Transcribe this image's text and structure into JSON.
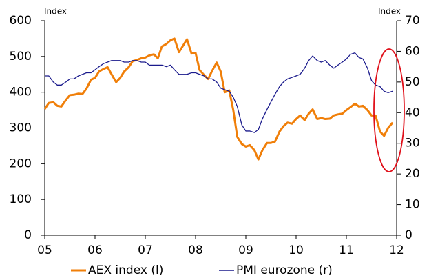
{
  "chart_data": {
    "type": "line",
    "y_label": "Index",
    "y2_label": "Index",
    "x": [
      2005.0,
      2005.08,
      2005.17,
      2005.25,
      2005.33,
      2005.42,
      2005.5,
      2005.58,
      2005.67,
      2005.75,
      2005.83,
      2005.92,
      2006.0,
      2006.08,
      2006.17,
      2006.25,
      2006.33,
      2006.42,
      2006.5,
      2006.58,
      2006.67,
      2006.75,
      2006.83,
      2006.92,
      2007.0,
      2007.08,
      2007.17,
      2007.25,
      2007.33,
      2007.42,
      2007.5,
      2007.58,
      2007.67,
      2007.75,
      2007.83,
      2007.92,
      2008.0,
      2008.08,
      2008.17,
      2008.25,
      2008.33,
      2008.42,
      2008.5,
      2008.58,
      2008.67,
      2008.75,
      2008.83,
      2008.92,
      2009.0,
      2009.08,
      2009.17,
      2009.25,
      2009.33,
      2009.42,
      2009.5,
      2009.58,
      2009.67,
      2009.75,
      2009.83,
      2009.92,
      2010.0,
      2010.08,
      2010.17,
      2010.25,
      2010.33,
      2010.42,
      2010.5,
      2010.58,
      2010.67,
      2010.75,
      2010.83,
      2010.92,
      2011.0,
      2011.08,
      2011.17,
      2011.25,
      2011.33,
      2011.42,
      2011.5,
      2011.58,
      2011.67,
      2011.75,
      2011.83,
      2011.92
    ],
    "series": [
      {
        "name": "AEX index (l)",
        "color": "#f07f09",
        "axis": "y",
        "values": [
          353,
          370,
          372,
          362,
          360,
          378,
          392,
          393,
          396,
          395,
          410,
          435,
          440,
          458,
          465,
          470,
          450,
          428,
          440,
          458,
          470,
          487,
          490,
          495,
          497,
          503,
          506,
          495,
          528,
          535,
          545,
          550,
          512,
          530,
          548,
          508,
          510,
          462,
          448,
          437,
          460,
          483,
          458,
          400,
          405,
          350,
          275,
          255,
          248,
          252,
          238,
          212,
          238,
          258,
          258,
          262,
          290,
          305,
          315,
          312,
          325,
          335,
          322,
          340,
          352,
          325,
          328,
          325,
          326,
          335,
          338,
          340,
          350,
          358,
          368,
          360,
          362,
          350,
          335,
          335,
          290,
          278,
          300,
          315
        ]
      },
      {
        "name": "PMI eurozone (r)",
        "color": "#1a1a8c",
        "axis": "y2",
        "values": [
          52,
          52,
          50,
          49,
          49,
          50,
          51,
          51,
          52,
          52.5,
          53,
          53,
          54,
          55,
          56,
          56.5,
          57,
          57,
          57,
          56.5,
          56.5,
          57,
          57,
          56.5,
          56.5,
          55.5,
          55.5,
          55.5,
          55.5,
          55,
          55.5,
          54,
          52.5,
          52.5,
          52.5,
          53,
          53,
          52.5,
          52,
          51,
          51,
          50,
          48,
          47.5,
          47,
          45,
          42,
          36,
          34,
          34,
          33.5,
          34.5,
          38,
          41,
          43.5,
          46,
          48.5,
          50,
          51,
          51.5,
          52,
          52.5,
          54.5,
          57,
          58.5,
          57,
          56.5,
          57,
          55.5,
          54.5,
          55.5,
          56.5,
          57.5,
          59,
          59.5,
          58,
          57.5,
          54.5,
          50.5,
          49,
          48.5,
          47,
          46.5,
          47
        ]
      }
    ],
    "xlim": [
      2005,
      2012
    ],
    "xticks": [
      {
        "value": 2005,
        "label": "05"
      },
      {
        "value": 2006,
        "label": "06"
      },
      {
        "value": 2007,
        "label": "07"
      },
      {
        "value": 2008,
        "label": "08"
      },
      {
        "value": 2009,
        "label": "09"
      },
      {
        "value": 2010,
        "label": "10"
      },
      {
        "value": 2011,
        "label": "11"
      },
      {
        "value": 2012,
        "label": "12"
      }
    ],
    "ylim": [
      0,
      600
    ],
    "yticks": [
      0,
      100,
      200,
      300,
      400,
      500,
      600
    ],
    "y2lim": [
      0,
      70
    ],
    "y2ticks": [
      0,
      10,
      20,
      30,
      40,
      50,
      60,
      70
    ],
    "legend": "bottom"
  }
}
